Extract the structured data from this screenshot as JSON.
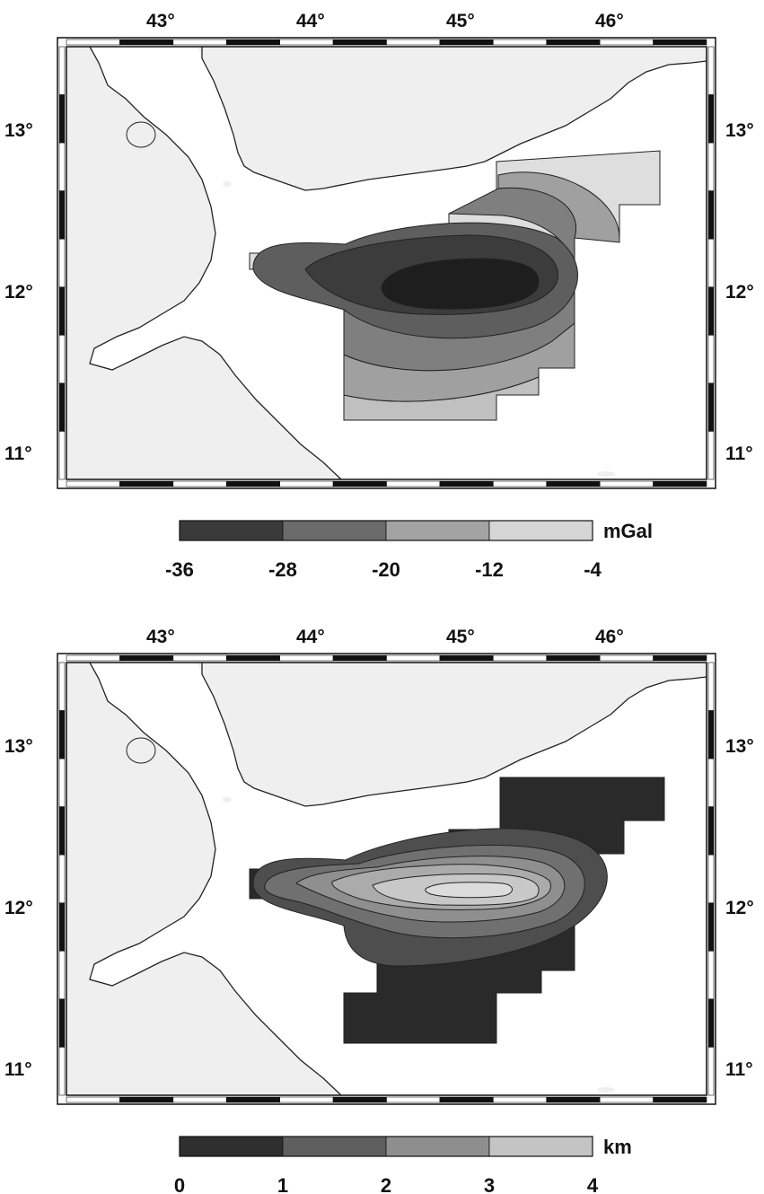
{
  "panels": [
    {
      "id": "gravity",
      "lon_labels": [
        "43°",
        "44°",
        "45°",
        "46°"
      ],
      "lat_labels": [
        "13°",
        "12°",
        "11°"
      ],
      "colorbar": {
        "unit": "mGal",
        "tick_labels": [
          "-36",
          "-28",
          "-20",
          "-12",
          "-4"
        ],
        "colors": [
          "#3a3a3a",
          "#6b6b6b",
          "#a3a3a3",
          "#d6d6d6"
        ]
      },
      "anomaly_colors": [
        "#1e1e1e",
        "#3c3c3c",
        "#5e5e5e",
        "#7f7f7f",
        "#a0a0a0",
        "#c0c0c0",
        "#dedede"
      ]
    },
    {
      "id": "depth",
      "lon_labels": [
        "43°",
        "44°",
        "45°",
        "46°"
      ],
      "lat_labels": [
        "13°",
        "12°",
        "11°"
      ],
      "colorbar": {
        "unit": "km",
        "tick_labels": [
          "0",
          "1",
          "2",
          "3",
          "4"
        ],
        "colors": [
          "#2f2f2f",
          "#5f5f5f",
          "#8e8e8e",
          "#c4c4c4"
        ]
      },
      "anomaly_colors": [
        "#2a2a2a",
        "#4e4e4e",
        "#707070",
        "#8f8f8f",
        "#ababab",
        "#c8c8c8",
        "#dcdcdc"
      ]
    }
  ],
  "colors": {
    "land": "#efefef",
    "sea": "#ffffff",
    "coast": "#222222",
    "frame_dark": "#111111",
    "frame_light": "#ffffff"
  }
}
